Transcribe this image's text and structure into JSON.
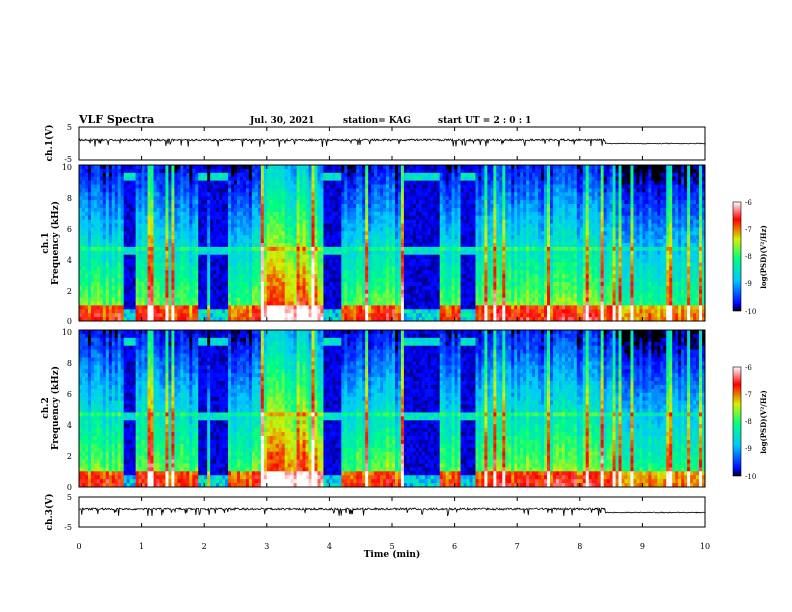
{
  "chart_data": {
    "type": "heatmap",
    "header": {
      "title": "VLF Spectra",
      "date": "Jul. 30, 2021",
      "station": "station= KAG",
      "start": "start UT =  2 : 0 : 1"
    },
    "xlabel": "Time  (min)",
    "xlim": [
      0,
      10
    ],
    "x_ticks": [
      "0",
      "1",
      "2",
      "3",
      "4",
      "5",
      "6",
      "7",
      "8",
      "9",
      "10"
    ],
    "panels": [
      {
        "id": "ch1-voltage",
        "type": "line",
        "ylabel": "ch.1(V)",
        "ylim": [
          -5,
          5
        ],
        "y_ticks": [
          "5",
          "-5"
        ],
        "color": "#000000"
      },
      {
        "id": "ch1-spectrogram",
        "type": "heatmap",
        "ylabel_line1": "ch.1",
        "ylabel_line2": "Frequency  (kHz)",
        "ylim": [
          0,
          10
        ],
        "y_ticks": [
          "0",
          "2",
          "4",
          "6",
          "8",
          "10"
        ],
        "colorbar": {
          "label": "log(PSD)(V²/Hz)",
          "range": [
            -10,
            -6
          ],
          "ticks": [
            "-6",
            "-7",
            "-8",
            "-9",
            "-10"
          ]
        }
      },
      {
        "id": "ch2-spectrogram",
        "type": "heatmap",
        "ylabel_line1": "ch.2",
        "ylabel_line2": "Frequency  (kHz)",
        "ylim": [
          0,
          10
        ],
        "y_ticks": [
          "0",
          "2",
          "4",
          "6",
          "8",
          "10"
        ],
        "colorbar": {
          "label": "log(PSD)(V²/Hz)",
          "range": [
            -10,
            -6
          ],
          "ticks": [
            "-6",
            "-7",
            "-8",
            "-9",
            "-10"
          ]
        }
      },
      {
        "id": "ch3-voltage",
        "type": "line",
        "ylabel": "ch.3(V)",
        "ylim": [
          -5,
          5
        ],
        "y_ticks": [
          "5",
          "-5"
        ],
        "color": "#000000"
      }
    ],
    "colormap": [
      "#000000",
      "#0000ff",
      "#00c8ff",
      "#00ff80",
      "#d8f000",
      "#ff0000",
      "#ffffff"
    ],
    "dark_intervals_min": [
      [
        0.7,
        0.9
      ],
      [
        1.9,
        2.05
      ],
      [
        2.1,
        2.4
      ],
      [
        3.9,
        4.2
      ],
      [
        5.2,
        5.75
      ],
      [
        6.1,
        6.35
      ]
    ],
    "quiet_band_kHz": [
      4.5,
      9.2
    ]
  }
}
